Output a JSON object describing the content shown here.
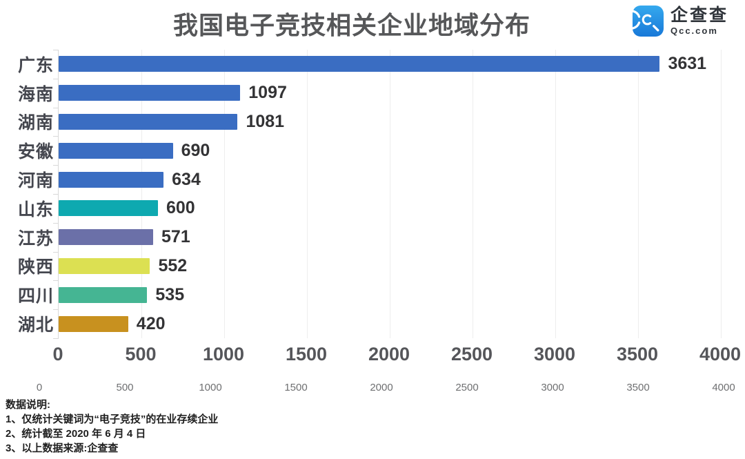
{
  "title": "我国电子竞技相关企业地域分布",
  "logo": {
    "icon": "qcc-logo-icon",
    "name": "企查查",
    "domain": "Qcc.com",
    "brand_color": "#1a87e0"
  },
  "chart_data": {
    "type": "bar",
    "orientation": "horizontal",
    "title": "我国电子竞技相关企业地域分布",
    "categories": [
      "广东",
      "海南",
      "湖南",
      "安徽",
      "河南",
      "山东",
      "江苏",
      "陕西",
      "四川",
      "湖北"
    ],
    "values": [
      3631,
      1097,
      1081,
      690,
      634,
      600,
      571,
      552,
      535,
      420
    ],
    "bar_colors": [
      "#3a6dc2",
      "#3a6dc2",
      "#3a6dc2",
      "#3a6dc2",
      "#3a6dc2",
      "#0ea9b0",
      "#6b70a8",
      "#dce052",
      "#45b593",
      "#c8911f"
    ],
    "xlim": [
      0,
      4000
    ],
    "x_ticks": [
      "0",
      "500",
      "1000",
      "1500",
      "2000",
      "2500",
      "3000",
      "3500",
      "4000"
    ],
    "x_ticks_secondary": [
      "0",
      "500",
      "1000",
      "1500",
      "2000",
      "2500",
      "3000",
      "3500",
      "4000"
    ],
    "grid": "vertical-light",
    "value_labels_shown": true,
    "legend": "none"
  },
  "footnotes": {
    "heading": "数据说明:",
    "items": [
      "1、仅统计关键词为“电子竞技”的在业存续企业",
      "2、统计截至 2020 年 6 月 4 日",
      "3、以上数据来源:企查查"
    ]
  }
}
